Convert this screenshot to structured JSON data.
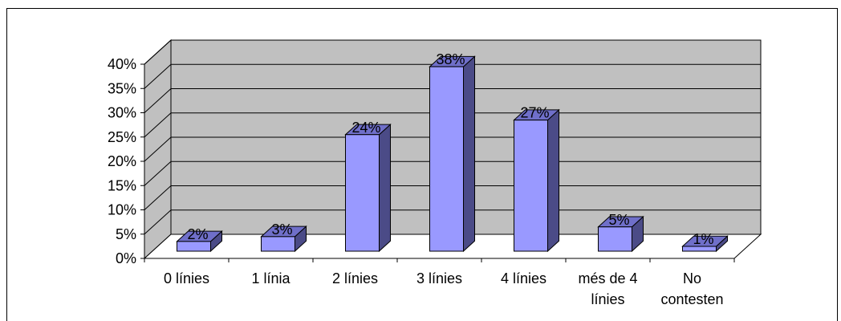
{
  "chart_data": {
    "type": "bar",
    "categories": [
      "0 línies",
      "1 línia",
      "2 línies",
      "3 línies",
      "4 línies",
      "més de 4 línies",
      "No contesten"
    ],
    "category_label_lines": [
      [
        "0 línies"
      ],
      [
        "1 línia"
      ],
      [
        "2 línies"
      ],
      [
        "3 línies"
      ],
      [
        "4 línies"
      ],
      [
        "més de 4",
        "línies"
      ],
      [
        "No",
        "contesten"
      ]
    ],
    "values": [
      2,
      3,
      24,
      38,
      27,
      5,
      1
    ],
    "data_labels": [
      "2%",
      "3%",
      "24%",
      "38%",
      "27%",
      "5%",
      "1%"
    ],
    "yticks": [
      "0%",
      "5%",
      "10%",
      "15%",
      "20%",
      "25%",
      "30%",
      "35%",
      "40%"
    ],
    "ylim": [
      0,
      40
    ],
    "grid": true,
    "three_d": true,
    "colors": {
      "bar_front": "#9999ff",
      "bar_side": "#4b4b87",
      "bar_top": "#6f6fc9",
      "wall": "#c0c0c0",
      "floor": "#ffffff",
      "gridline": "#000000"
    }
  }
}
